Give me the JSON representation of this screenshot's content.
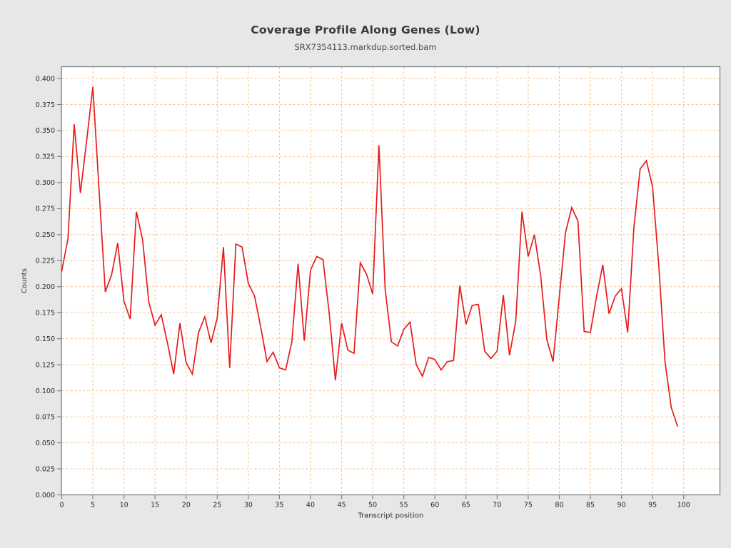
{
  "header": {
    "title": "Coverage Profile Along Genes (Low)",
    "subtitle": "SRX7354113.markdup.sorted.bam"
  },
  "colors": {
    "background": "#e7e7e7",
    "plot_background": "#ffffff",
    "grid": "#f6c28f",
    "line": "#e51c1c",
    "border": "#7f7f7f",
    "tick_color": "#7f7f7f",
    "tick_text": "#2a2a2a",
    "axis_label_text": "#333333"
  },
  "chart_data": {
    "type": "line",
    "title": "Coverage Profile Along Genes (Low)",
    "subtitle": "SRX7354113.markdup.sorted.bam",
    "xlabel": "Transcript position",
    "ylabel": "Counts",
    "xlim": [
      0,
      105.8
    ],
    "ylim": [
      0,
      0.4075
    ],
    "grid": {
      "show": true,
      "style": "dashed",
      "position": "both"
    },
    "legend": "none",
    "x_ticks": [
      0,
      5,
      10,
      15,
      20,
      25,
      30,
      35,
      40,
      45,
      50,
      55,
      60,
      65,
      70,
      75,
      80,
      85,
      90,
      95,
      100
    ],
    "x_tick_labels": [
      "0",
      "5",
      "10",
      "15",
      "20",
      "25",
      "30",
      "35",
      "40",
      "45",
      "50",
      "55",
      "60",
      "65",
      "70",
      "75",
      "80",
      "85",
      "90",
      "95",
      "100"
    ],
    "y_ticks": [
      0,
      0.025,
      0.05,
      0.075,
      0.1,
      0.125,
      0.15,
      0.175,
      0.2,
      0.225,
      0.25,
      0.275,
      0.3,
      0.325,
      0.35,
      0.375,
      0.4
    ],
    "y_tick_labels": [
      "0.000",
      "0.025",
      "0.050",
      "0.075",
      "0.100",
      "0.125",
      "0.150",
      "0.175",
      "0.200",
      "0.225",
      "0.250",
      "0.275",
      "0.300",
      "0.325",
      "0.350",
      "0.375",
      "0.400"
    ],
    "series": [
      {
        "name": "SRX7354113.markdup.sorted.bam",
        "color": "#e51c1c",
        "x_start": 0,
        "x_step": 1,
        "values": [
          0.215,
          0.246,
          0.356,
          0.29,
          0.34,
          0.392,
          0.293,
          0.195,
          0.211,
          0.242,
          0.186,
          0.169,
          0.272,
          0.245,
          0.185,
          0.163,
          0.173,
          0.146,
          0.116,
          0.165,
          0.127,
          0.116,
          0.156,
          0.171,
          0.146,
          0.17,
          0.238,
          0.122,
          0.241,
          0.238,
          0.203,
          0.191,
          0.161,
          0.128,
          0.137,
          0.122,
          0.12,
          0.147,
          0.222,
          0.148,
          0.216,
          0.229,
          0.226,
          0.175,
          0.11,
          0.165,
          0.139,
          0.136,
          0.223,
          0.212,
          0.193,
          0.336,
          0.198,
          0.147,
          0.143,
          0.159,
          0.166,
          0.125,
          0.114,
          0.132,
          0.13,
          0.12,
          0.128,
          0.129,
          0.201,
          0.164,
          0.182,
          0.183,
          0.138,
          0.131,
          0.138,
          0.192,
          0.134,
          0.167,
          0.272,
          0.229,
          0.25,
          0.211,
          0.149,
          0.128,
          0.19,
          0.252,
          0.276,
          0.263,
          0.157,
          0.156,
          0.191,
          0.221,
          0.174,
          0.191,
          0.198,
          0.156,
          0.257,
          0.313,
          0.321,
          0.296,
          0.22,
          0.128,
          0.084,
          0.066
        ]
      }
    ]
  }
}
